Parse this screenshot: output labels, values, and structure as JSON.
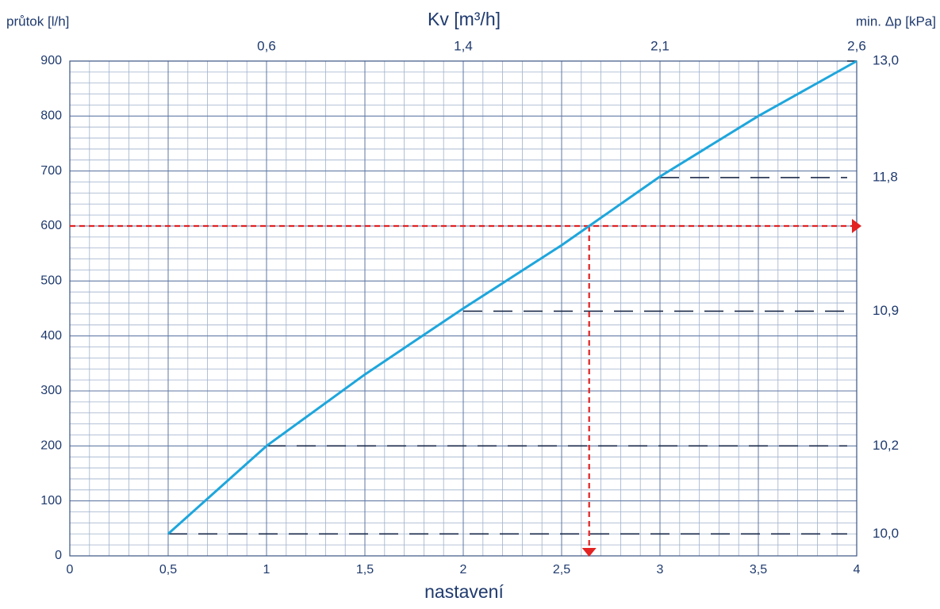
{
  "chart_data": {
    "type": "line",
    "title": "Kv [m³/h]",
    "ylabel": "průtok [l/h]",
    "xlabel": "nastavení",
    "x": [
      0.5,
      1,
      1.5,
      2,
      2.5,
      2.64,
      3,
      3.5,
      4
    ],
    "series": [
      {
        "name": "průtok",
        "color": "#1ea6dc",
        "values": [
          40,
          200,
          330,
          450,
          565,
          600,
          690,
          800,
          900
        ]
      }
    ],
    "xlim": [
      0,
      4
    ],
    "ylim": [
      0,
      900
    ],
    "xticks": [
      0,
      {
        "value": 0.5,
        "label": "0,5"
      },
      1,
      {
        "value": 1.5,
        "label": "1,5"
      },
      2,
      {
        "value": 2.5,
        "label": "2,5"
      },
      3,
      {
        "value": 3.5,
        "label": "3,5"
      },
      4
    ],
    "yticks": [
      0,
      100,
      200,
      300,
      400,
      500,
      600,
      700,
      800,
      900
    ],
    "grid": true,
    "kv_axis": {
      "settings": [
        1,
        2,
        3,
        4
      ],
      "ticks": [
        {
          "value": 0.6,
          "label": "0,6"
        },
        {
          "value": 1.4,
          "label": "1,4"
        },
        {
          "value": 2.1,
          "label": "2,1"
        },
        {
          "value": 2.6,
          "label": "2,6"
        }
      ]
    },
    "dp_axis": {
      "label": "min. Δp [kPa]",
      "settings": [
        0.5,
        1,
        2,
        3,
        4
      ],
      "flows": [
        40,
        200,
        445,
        688,
        900
      ],
      "ticks": [
        {
          "value": 10.0,
          "label": "10,0"
        },
        {
          "value": 10.2,
          "label": "10,2"
        },
        {
          "value": 10.9,
          "label": "10,9"
        },
        {
          "value": 11.8,
          "label": "11,8"
        },
        {
          "value": 13.0,
          "label": "13,0"
        }
      ]
    },
    "example": {
      "flow": 600,
      "setting": 2.64,
      "color": "#e32222"
    }
  }
}
